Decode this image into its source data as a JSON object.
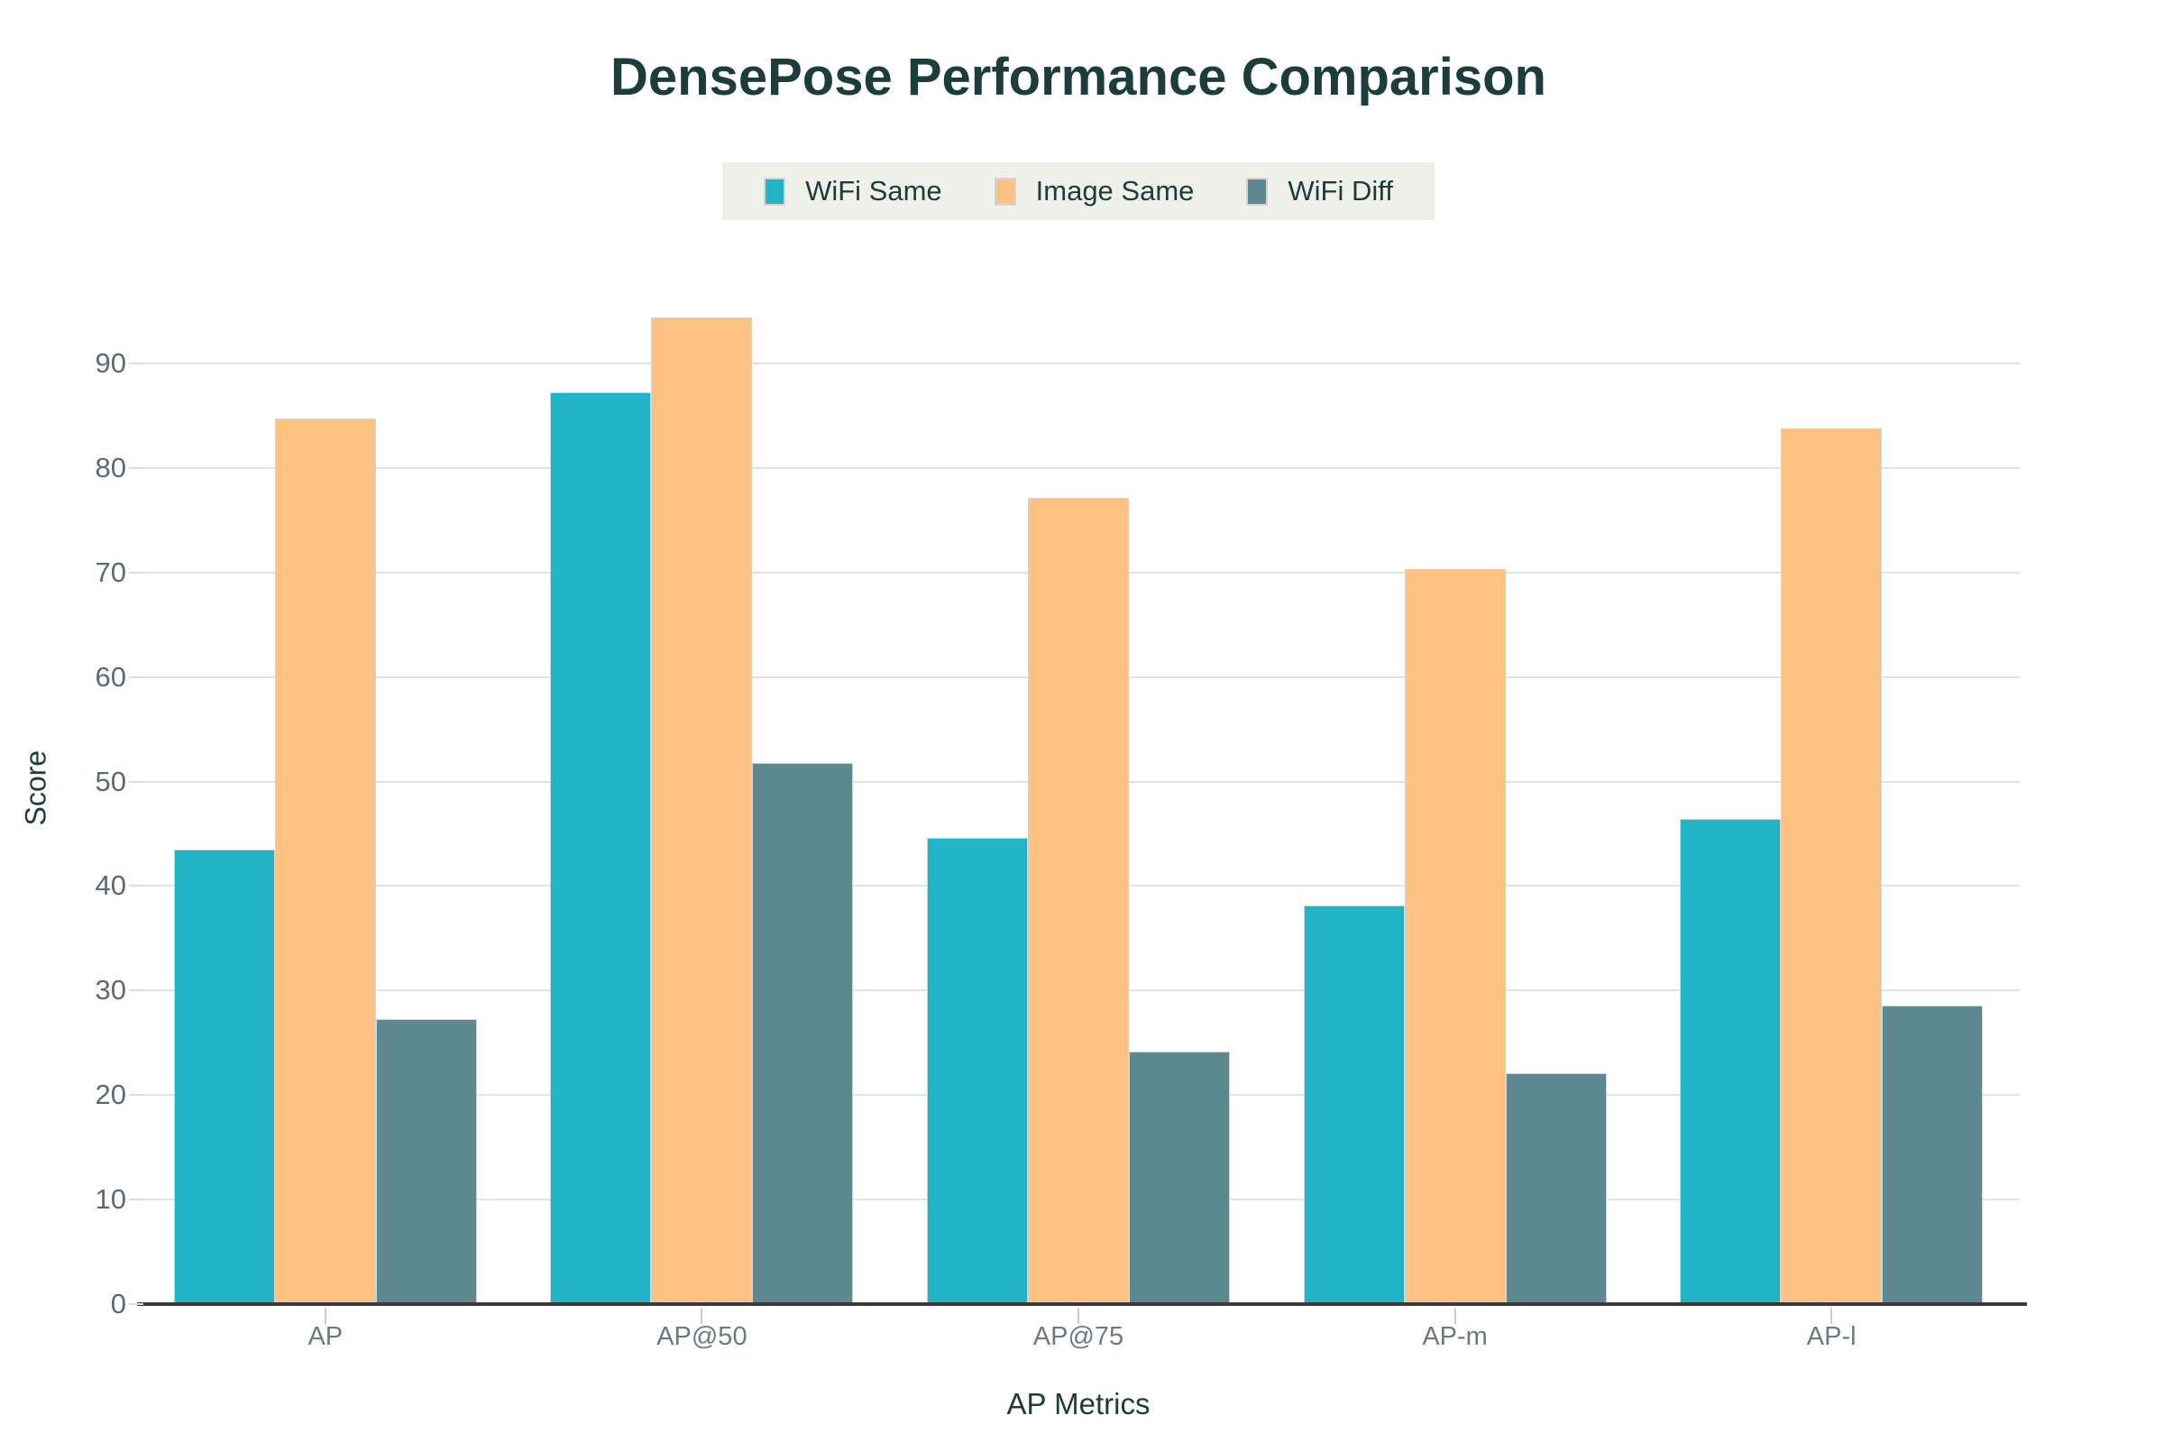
{
  "chart_data": {
    "type": "bar",
    "title": "DensePose Performance Comparison",
    "categories": [
      "AP",
      "AP@50",
      "AP@75",
      "AP-m",
      "AP-l"
    ],
    "series": [
      {
        "name": "WiFi Same",
        "color": "#20b4c6",
        "values": [
          43.5,
          87.2,
          44.6,
          38.1,
          46.4
        ]
      },
      {
        "name": "Image Same",
        "color": "#ffc181",
        "values": [
          84.7,
          94.4,
          77.1,
          70.3,
          83.8
        ]
      },
      {
        "name": "WiFi Diff",
        "color": "#5d8791",
        "values": [
          27.3,
          51.8,
          24.2,
          22.1,
          28.6
        ]
      }
    ],
    "xlabel": "AP Metrics",
    "ylabel": "Score",
    "ylim": [
      0,
      95
    ],
    "yticks": [
      0,
      10,
      20,
      30,
      40,
      50,
      60,
      70,
      80,
      90
    ],
    "grid": true,
    "legend_position": "top-center",
    "colors": {
      "title_text": "#1d3c3c",
      "y_tick_text": "#5c6b73",
      "x_tick_text": "#6d7a82",
      "gridline": "#e2e2e2",
      "axis_line": "#3a3a3a",
      "legend_background": "#eef0e9",
      "bar_border": "#d4d4d4"
    }
  }
}
